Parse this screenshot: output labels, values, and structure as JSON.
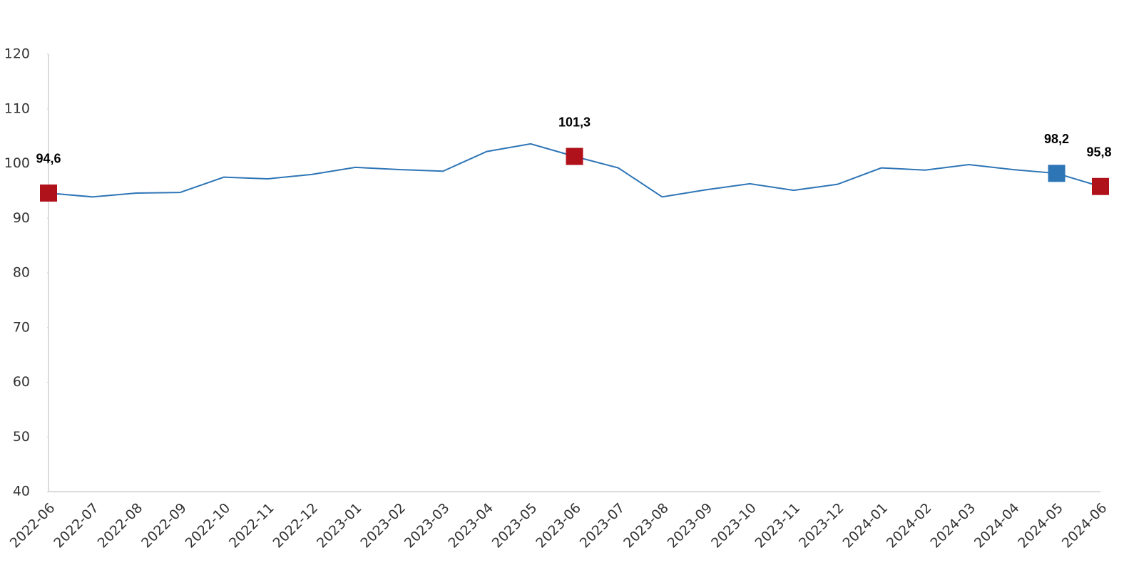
{
  "chart_data": {
    "type": "line",
    "categories": [
      "2022-06",
      "2022-07",
      "2022-08",
      "2022-09",
      "2022-10",
      "2022-11",
      "2022-12",
      "2023-01",
      "2023-02",
      "2023-03",
      "2023-04",
      "2023-05",
      "2023-06",
      "2023-07",
      "2023-08",
      "2023-09",
      "2023-10",
      "2023-11",
      "2023-12",
      "2024-01",
      "2024-02",
      "2024-03",
      "2024-04",
      "2024-05",
      "2024-06"
    ],
    "series": [
      {
        "color": "#2e75b6",
        "values": [
          94.6,
          93.9,
          94.6,
          94.7,
          97.5,
          97.2,
          98.0,
          99.3,
          98.9,
          98.6,
          102.2,
          103.6,
          101.3,
          99.2,
          93.9,
          95.2,
          96.3,
          95.1,
          96.2,
          99.2,
          98.8,
          99.8,
          98.9,
          98.2,
          95.8
        ],
        "value_labels": [
          "94,6",
          null,
          null,
          null,
          null,
          null,
          null,
          null,
          null,
          null,
          null,
          null,
          "101,3",
          null,
          null,
          null,
          null,
          null,
          null,
          null,
          null,
          null,
          null,
          "98,2",
          "95,8"
        ],
        "marker_colors": [
          "#b0121b",
          null,
          null,
          null,
          null,
          null,
          null,
          null,
          null,
          null,
          null,
          null,
          "#b0121b",
          null,
          null,
          null,
          null,
          null,
          null,
          null,
          null,
          null,
          null,
          "#2e75b6",
          "#b0121b"
        ]
      }
    ],
    "ylim": [
      40,
      120
    ],
    "yticks": [
      40,
      50,
      60,
      70,
      80,
      90,
      100,
      110,
      120
    ],
    "grid": false
  }
}
